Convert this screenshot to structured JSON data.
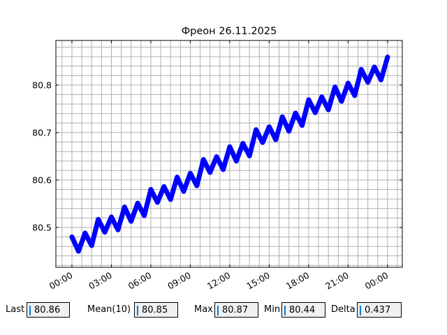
{
  "chart_data": {
    "type": "line",
    "title": "Фреон 26.11.2025",
    "x": [
      0,
      0.5,
      1,
      1.5,
      2,
      2.5,
      3,
      3.5,
      4,
      4.5,
      5,
      5.5,
      6,
      6.5,
      7,
      7.5,
      8,
      8.5,
      9,
      9.5,
      10,
      10.5,
      11,
      11.5,
      12,
      12.5,
      13,
      13.5,
      14,
      14.5,
      15,
      15.5,
      16,
      16.5,
      17,
      17.5,
      18,
      18.5,
      19,
      19.5,
      20,
      20.5,
      21,
      21.5,
      22,
      22.5,
      23,
      23.5,
      24
    ],
    "series": [
      {
        "name": "Фреон",
        "color": "#0000ff",
        "values": [
          80.48,
          80.45,
          80.488,
          80.462,
          80.517,
          80.49,
          80.522,
          80.495,
          80.543,
          80.513,
          80.551,
          80.525,
          80.58,
          80.553,
          80.586,
          80.559,
          80.606,
          80.576,
          80.614,
          80.588,
          80.643,
          80.616,
          80.649,
          80.622,
          80.67,
          80.64,
          80.677,
          80.651,
          80.706,
          80.679,
          80.712,
          80.685,
          80.733,
          80.703,
          80.741,
          80.715,
          80.769,
          80.742,
          80.775,
          80.748,
          80.796,
          80.766,
          80.804,
          80.778,
          80.833,
          80.806,
          80.838,
          80.811,
          80.859
        ]
      }
    ],
    "xlim": [
      -1.22,
      25.12
    ],
    "ylim": [
      80.416,
      80.894
    ],
    "xticks": [
      {
        "value": 0,
        "label": "00:00"
      },
      {
        "value": 3,
        "label": "03:00"
      },
      {
        "value": 6,
        "label": "06:00"
      },
      {
        "value": 9,
        "label": "09:00"
      },
      {
        "value": 12,
        "label": "12:00"
      },
      {
        "value": 15,
        "label": "15:00"
      },
      {
        "value": 18,
        "label": "18:00"
      },
      {
        "value": 21,
        "label": "21:00"
      },
      {
        "value": 24,
        "label": "00:00"
      }
    ],
    "yticks": [
      80.5,
      80.6,
      80.7,
      80.8
    ],
    "grid": true,
    "x_minor_step": 0.75,
    "y_minor_step": 0.02
  },
  "stats": [
    {
      "label": "Last",
      "value": "80.86"
    },
    {
      "label": "Mean(10)",
      "value": "80.85"
    },
    {
      "label": "Max",
      "value": "80.87"
    },
    {
      "label": "Min",
      "value": "80.44"
    },
    {
      "label": "Delta",
      "value": "0.437"
    }
  ]
}
